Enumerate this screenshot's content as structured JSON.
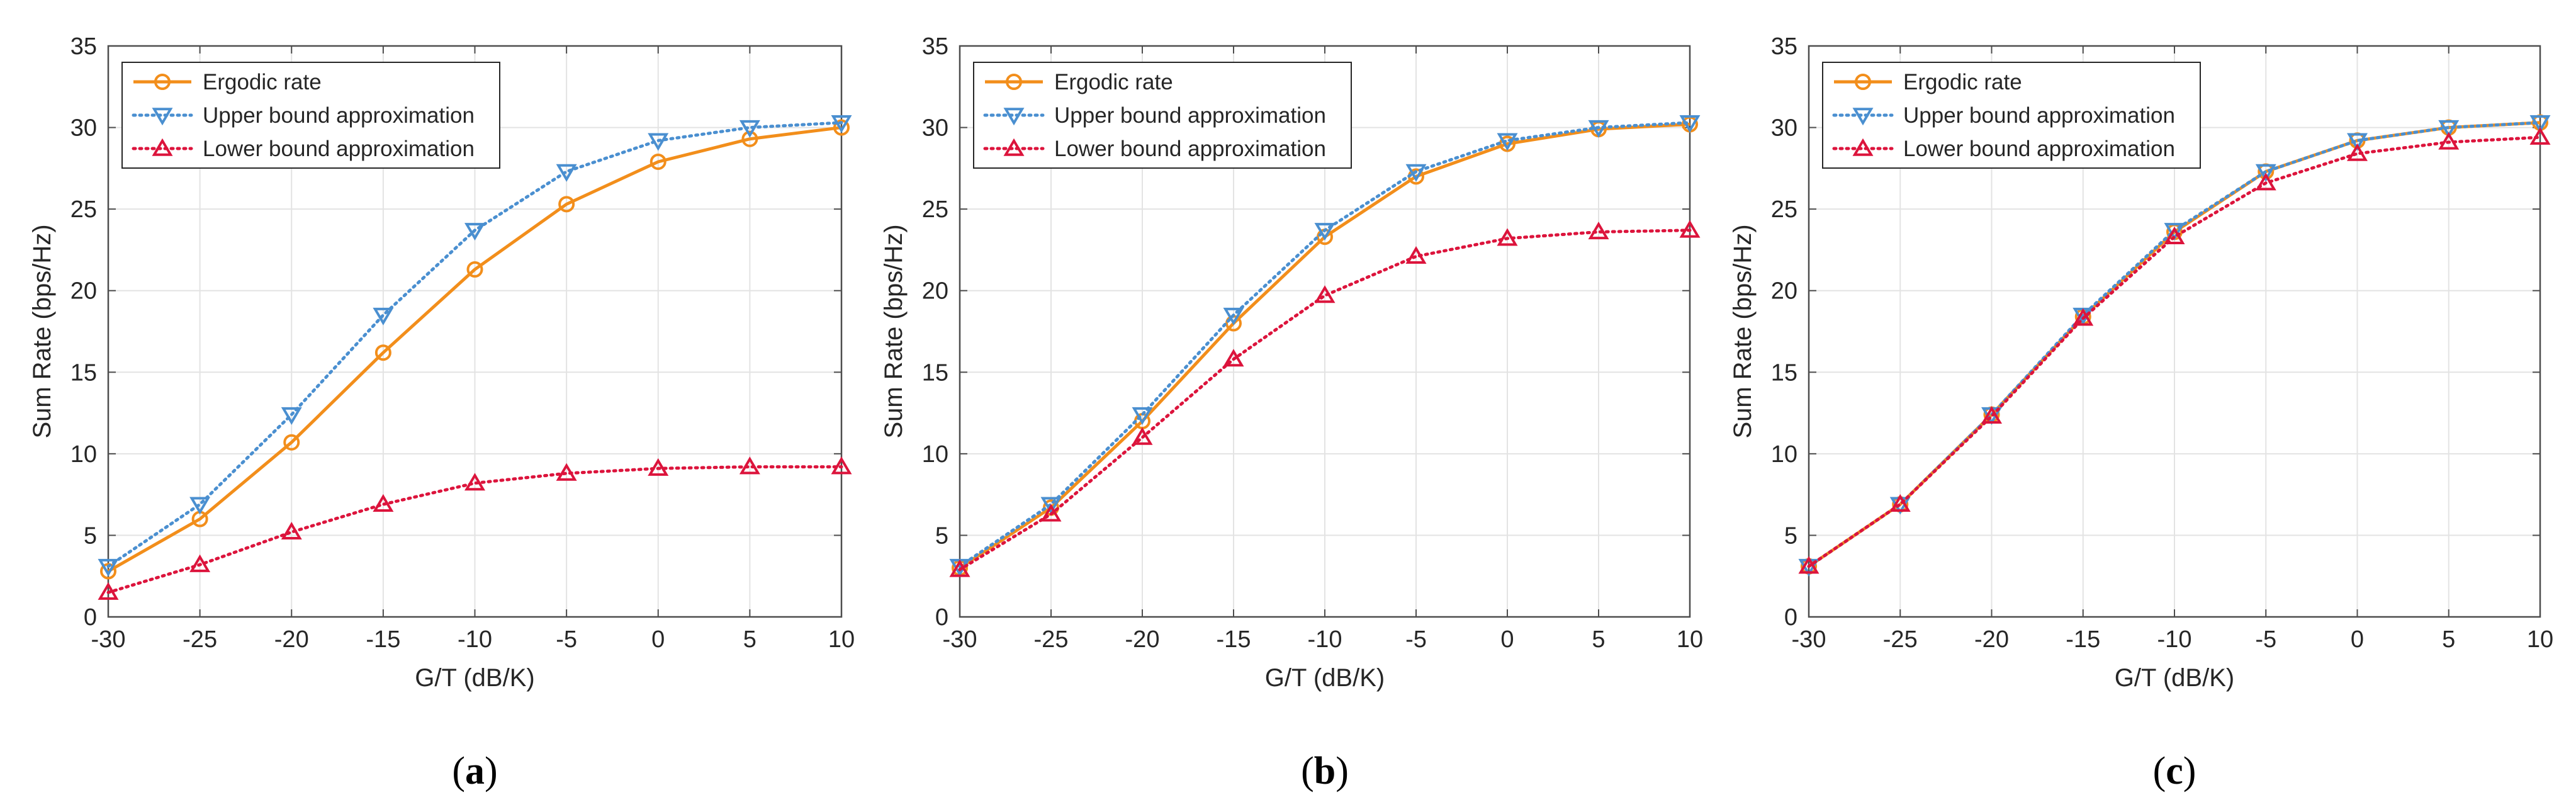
{
  "colors": {
    "ergodic": "#F28E1B",
    "upper": "#4A8FD0",
    "lower": "#DC143C",
    "axis": "#4D4D4D",
    "grid": "#E3E3E3"
  },
  "chart_data": [
    {
      "type": "line",
      "panel_label": "a",
      "xlabel": "G/T (dB/K)",
      "ylabel": "Sum Rate (bps/Hz)",
      "xlim": [
        -30,
        10
      ],
      "ylim": [
        0,
        35
      ],
      "xticks": [
        -30,
        -25,
        -20,
        -15,
        -10,
        -5,
        0,
        5,
        10
      ],
      "yticks": [
        0,
        5,
        10,
        15,
        20,
        25,
        30,
        35
      ],
      "grid": true,
      "legend_position": "top-left",
      "x": [
        -30,
        -25,
        -20,
        -15,
        -10,
        -5,
        0,
        5,
        10
      ],
      "series": [
        {
          "name": "Ergodic rate",
          "marker": "circle",
          "style": "solid",
          "values": [
            2.8,
            6.0,
            10.7,
            16.2,
            21.3,
            25.3,
            27.9,
            29.3,
            30.0
          ]
        },
        {
          "name": "Upper bound approximation",
          "marker": "triangle-down",
          "style": "dotted",
          "values": [
            3.1,
            6.9,
            12.4,
            18.5,
            23.7,
            27.3,
            29.2,
            30.0,
            30.3
          ]
        },
        {
          "name": "Lower bound approximation",
          "marker": "triangle-up",
          "style": "dotted",
          "values": [
            1.5,
            3.2,
            5.2,
            6.9,
            8.2,
            8.8,
            9.1,
            9.2,
            9.2
          ]
        }
      ]
    },
    {
      "type": "line",
      "panel_label": "b",
      "xlabel": "G/T (dB/K)",
      "ylabel": "Sum Rate (bps/Hz)",
      "xlim": [
        -30,
        10
      ],
      "ylim": [
        0,
        35
      ],
      "xticks": [
        -30,
        -25,
        -20,
        -15,
        -10,
        -5,
        0,
        5,
        10
      ],
      "yticks": [
        0,
        5,
        10,
        15,
        20,
        25,
        30,
        35
      ],
      "grid": true,
      "legend_position": "top-left",
      "x": [
        -30,
        -25,
        -20,
        -15,
        -10,
        -5,
        0,
        5,
        10
      ],
      "series": [
        {
          "name": "Ergodic rate",
          "marker": "circle",
          "style": "solid",
          "values": [
            3.0,
            6.7,
            12.0,
            18.0,
            23.3,
            27.0,
            29.0,
            29.9,
            30.2
          ]
        },
        {
          "name": "Upper bound approximation",
          "marker": "triangle-down",
          "style": "dotted",
          "values": [
            3.1,
            6.9,
            12.4,
            18.5,
            23.7,
            27.3,
            29.2,
            30.0,
            30.3
          ]
        },
        {
          "name": "Lower bound approximation",
          "marker": "triangle-up",
          "style": "dotted",
          "values": [
            2.9,
            6.3,
            11.0,
            15.8,
            19.7,
            22.1,
            23.2,
            23.6,
            23.7
          ]
        }
      ]
    },
    {
      "type": "line",
      "panel_label": "c",
      "xlabel": "G/T (dB/K)",
      "ylabel": "Sum Rate (bps/Hz)",
      "xlim": [
        -30,
        10
      ],
      "ylim": [
        0,
        35
      ],
      "xticks": [
        -30,
        -25,
        -20,
        -15,
        -10,
        -5,
        0,
        5,
        10
      ],
      "yticks": [
        0,
        5,
        10,
        15,
        20,
        25,
        30,
        35
      ],
      "grid": true,
      "legend_position": "top-left",
      "x": [
        -30,
        -25,
        -20,
        -15,
        -10,
        -5,
        0,
        5,
        10
      ],
      "series": [
        {
          "name": "Ergodic rate",
          "marker": "circle",
          "style": "solid",
          "values": [
            3.1,
            6.9,
            12.4,
            18.4,
            23.6,
            27.3,
            29.2,
            30.0,
            30.3
          ]
        },
        {
          "name": "Upper bound approximation",
          "marker": "triangle-down",
          "style": "dotted",
          "values": [
            3.1,
            6.9,
            12.4,
            18.5,
            23.7,
            27.3,
            29.2,
            30.0,
            30.3
          ]
        },
        {
          "name": "Lower bound approximation",
          "marker": "triangle-up",
          "style": "dotted",
          "values": [
            3.1,
            6.9,
            12.3,
            18.3,
            23.3,
            26.6,
            28.4,
            29.1,
            29.4
          ]
        }
      ]
    }
  ]
}
